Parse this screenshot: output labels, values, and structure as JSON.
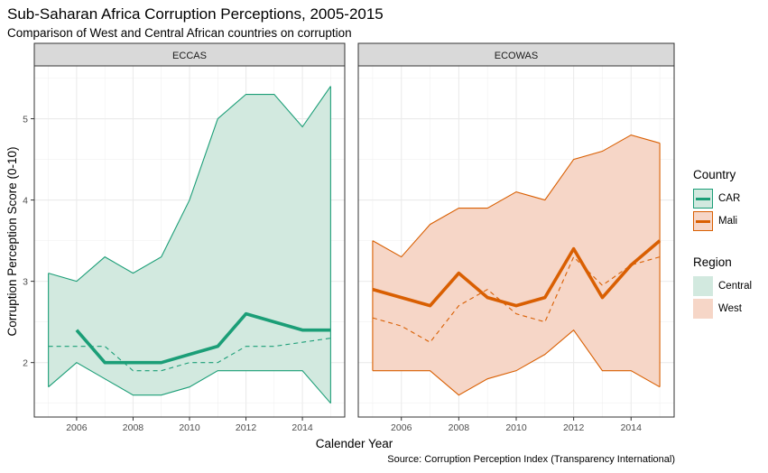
{
  "title": "Sub-Saharan Africa Corruption Perceptions, 2005-2015",
  "subtitle": "Comparison of West and Central African countries on corruption",
  "caption": "Source: Corruption Perception Index (Transparency International)",
  "legends": {
    "country": {
      "title": "Country",
      "items": [
        {
          "label": "CAR",
          "color": "#1b9e77"
        },
        {
          "label": "Mali",
          "color": "#d95f02"
        }
      ]
    },
    "region": {
      "title": "Region",
      "items": [
        {
          "label": "Central",
          "color": "#1b9e77"
        },
        {
          "label": "West",
          "color": "#d95f02"
        }
      ]
    }
  },
  "chart_data": {
    "type": "line",
    "xlabel": "Calender Year",
    "ylabel": "Corruption Perception Score (0-10)",
    "xlim": [
      2004.5,
      2015.5
    ],
    "ylim": [
      1.33,
      5.65
    ],
    "x_ticks": [
      2006,
      2008,
      2010,
      2012,
      2014
    ],
    "y_ticks": [
      2,
      3,
      4,
      5
    ],
    "grid": true,
    "legend_position": "right",
    "panels": [
      {
        "strip": "ECCAS",
        "region": "Central",
        "color": "#1b9e77",
        "fill": "#d2e9df",
        "ribbon": {
          "x": [
            2005,
            2006,
            2007,
            2008,
            2009,
            2010,
            2011,
            2012,
            2013,
            2014,
            2015
          ],
          "min": [
            1.7,
            2.0,
            1.8,
            1.6,
            1.6,
            1.7,
            1.9,
            1.9,
            1.9,
            1.9,
            1.5
          ],
          "max": [
            3.1,
            3.0,
            3.3,
            3.1,
            3.3,
            4.0,
            5.0,
            5.3,
            5.3,
            4.9,
            5.4
          ]
        },
        "trend": {
          "x": [
            2005,
            2006,
            2007,
            2008,
            2009,
            2010,
            2011,
            2012,
            2013,
            2014,
            2015
          ],
          "values": [
            2.2,
            2.2,
            2.2,
            1.9,
            1.9,
            2.0,
            2.0,
            2.2,
            2.2,
            2.25,
            2.3
          ]
        },
        "country": {
          "name": "CAR",
          "x": [
            2006,
            2007,
            2008,
            2009,
            2010,
            2011,
            2012,
            2013,
            2014,
            2015
          ],
          "values": [
            2.4,
            2.0,
            2.0,
            2.0,
            2.1,
            2.2,
            2.6,
            2.5,
            2.4,
            2.4
          ]
        }
      },
      {
        "strip": "ECOWAS",
        "region": "West",
        "color": "#d95f02",
        "fill": "#f6d6c7",
        "ribbon": {
          "x": [
            2005,
            2006,
            2007,
            2008,
            2009,
            2010,
            2011,
            2012,
            2013,
            2014,
            2015
          ],
          "min": [
            1.9,
            1.9,
            1.9,
            1.6,
            1.8,
            1.9,
            2.1,
            2.4,
            1.9,
            1.9,
            1.7
          ],
          "max": [
            3.5,
            3.3,
            3.7,
            3.9,
            3.9,
            4.1,
            4.0,
            4.5,
            4.6,
            4.8,
            4.7
          ]
        },
        "trend": {
          "x": [
            2005,
            2006,
            2007,
            2008,
            2009,
            2010,
            2011,
            2012,
            2013,
            2014,
            2015
          ],
          "values": [
            2.55,
            2.45,
            2.25,
            2.7,
            2.9,
            2.6,
            2.5,
            3.3,
            2.95,
            3.2,
            3.3
          ]
        },
        "country": {
          "name": "Mali",
          "x": [
            2005,
            2006,
            2007,
            2008,
            2009,
            2010,
            2011,
            2012,
            2013,
            2014,
            2015
          ],
          "values": [
            2.9,
            2.8,
            2.7,
            3.1,
            2.8,
            2.7,
            2.8,
            3.4,
            2.8,
            3.2,
            3.5
          ]
        }
      }
    ]
  }
}
